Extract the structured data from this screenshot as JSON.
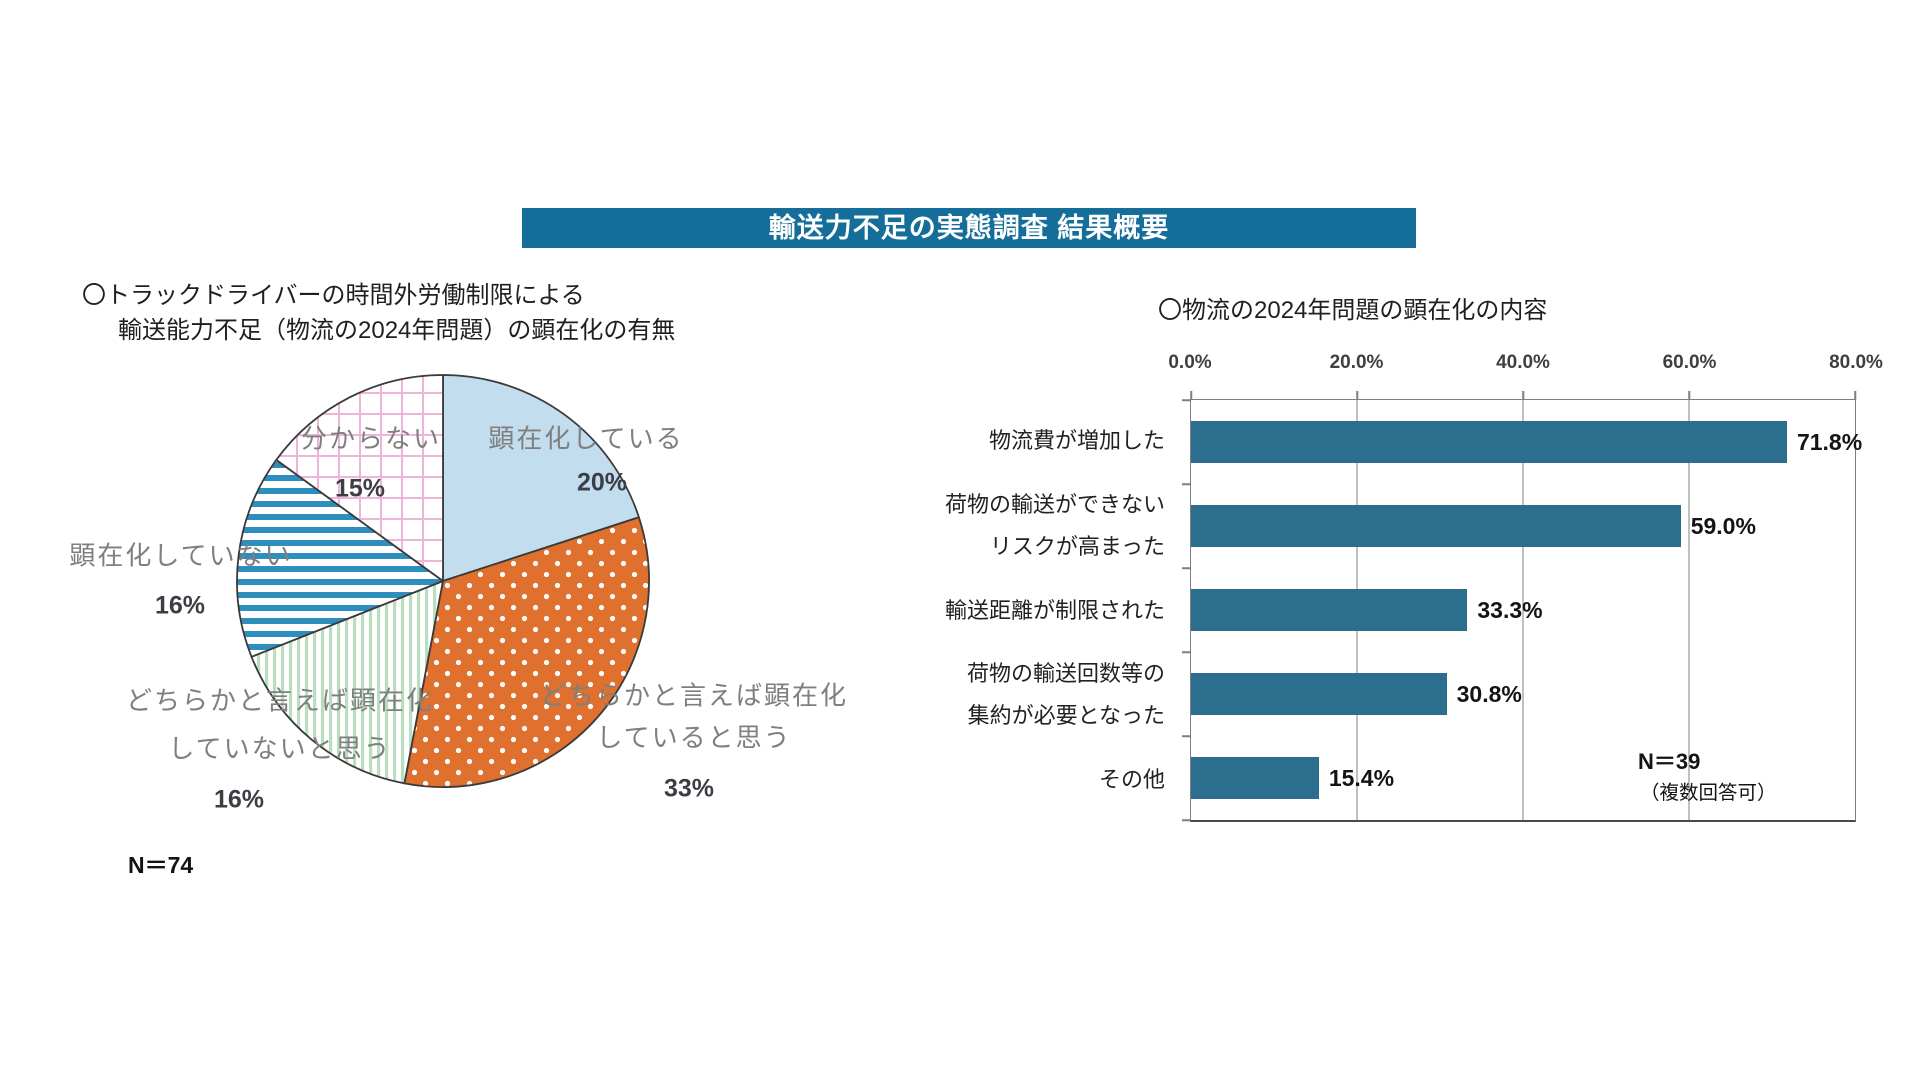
{
  "page": {
    "title": "輸送力不足の実態調査 結果概要",
    "banner_bg": "#156e99"
  },
  "pie_section": {
    "title_line1": "〇トラックドライバーの時間外労働制限による",
    "title_line2": "輸送能力不足（物流の2024年問題）の顕在化の有無",
    "n_label": "N＝74",
    "labels": {
      "manifest": "顕在化している",
      "manifest_pct": "20%",
      "somewhat_line1": "どちらかと言えば顕在化",
      "somewhat_line2": "していると思う",
      "somewhat_pct": "33%",
      "somewhat_not_line1": "どちらかと言えば顕在化",
      "somewhat_not_line2": "していないと思う",
      "somewhat_not_pct": "16%",
      "not_manifest": "顕在化していない",
      "not_manifest_pct": "16%",
      "unknown": "分からない",
      "unknown_pct": "15%"
    }
  },
  "bar_section": {
    "title": "〇物流の2024年問題の顕在化の内容",
    "note_line1": "N＝39",
    "note_line2": "（複数回答可）"
  },
  "chart_data": [
    {
      "type": "pie",
      "title": "トラックドライバーの時間外労働制限による輸送能力不足（物流の2024年問題）の顕在化の有無",
      "sample_size": "N＝74",
      "labels": [
        "顕在化している",
        "どちらかと言えば顕在化していると思う",
        "どちらかと言えば顕在化していないと思う",
        "顕在化していない",
        "分からない"
      ],
      "values": [
        20,
        33,
        16,
        16,
        15
      ],
      "unit": "%",
      "start_angle_deg": 0,
      "direction": "clockwise",
      "slice_styles": [
        {
          "fill": "#c2ddee",
          "pattern": "solid"
        },
        {
          "fill": "#e0702e",
          "pattern": "white-dots"
        },
        {
          "fill": "#ffffff",
          "pattern": "green-vertical-stripes",
          "pattern_color": "#b9dfc0"
        },
        {
          "fill": "#ffffff",
          "pattern": "blue-horizontal-stripes",
          "pattern_color": "#2e8fbe"
        },
        {
          "fill": "#ffffff",
          "pattern": "pink-grid",
          "pattern_color": "#f0b4d8"
        }
      ]
    },
    {
      "type": "bar",
      "orientation": "horizontal",
      "title": "物流の2024年問題の顕在化の内容",
      "categories": [
        [
          "物流費が増加した"
        ],
        [
          "荷物の輸送ができない",
          "リスクが高まった"
        ],
        [
          "輸送距離が制限された"
        ],
        [
          "荷物の輸送回数等の",
          "集約が必要となった"
        ],
        [
          "その他"
        ]
      ],
      "values": [
        71.8,
        59.0,
        33.3,
        30.8,
        15.4
      ],
      "value_labels": [
        "71.8%",
        "59.0%",
        "33.3%",
        "30.8%",
        "15.4%"
      ],
      "xlim": [
        0,
        80
      ],
      "x_ticks": [
        "0.0%",
        "20.0%",
        "40.0%",
        "60.0%",
        "80.0%"
      ],
      "bar_color": "#2b6e8e",
      "grid": true,
      "legend": false,
      "note": "N＝39（複数回答可）"
    }
  ]
}
